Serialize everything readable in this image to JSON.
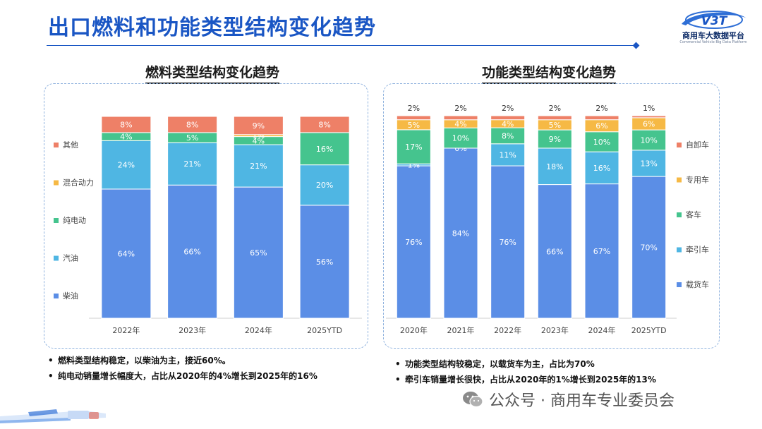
{
  "page": {
    "title": "出口燃料和功能类型结构变化趋势"
  },
  "logo": {
    "mark": "V3T",
    "name": "商用车大数据平台",
    "sub": "Commercial Vehicle Big Data Platform"
  },
  "colors": {
    "title": "#1a56c4",
    "panel_border": "#8fb2de"
  },
  "watermark": "公众号 · 商用车专业委员会",
  "chart_data": [
    {
      "type": "bar",
      "stacked": true,
      "title": "燃料类型结构变化趋势",
      "categories": [
        "2022年",
        "2023年",
        "2024年",
        "2025YTD"
      ],
      "ylim": [
        0,
        100
      ],
      "legend_position": "left",
      "series": [
        {
          "name": "柴油",
          "color": "#5b8ee6",
          "values": [
            64,
            66,
            65,
            56
          ]
        },
        {
          "name": "汽油",
          "color": "#4fb6e3",
          "values": [
            24,
            21,
            21,
            20
          ]
        },
        {
          "name": "纯电动",
          "color": "#45c48e",
          "values": [
            4,
            5,
            4,
            16
          ]
        },
        {
          "name": "混合动力",
          "color": "#f6b945",
          "values": [
            0,
            0,
            1,
            0
          ]
        },
        {
          "name": "其他",
          "color": "#ee8067",
          "values": [
            8,
            8,
            9,
            8
          ]
        }
      ],
      "labels": [
        [
          "64%",
          "66%",
          "65%",
          "56%"
        ],
        [
          "24%",
          "21%",
          "21%",
          "20%"
        ],
        [
          "4%",
          "5%",
          "4%",
          "16%"
        ],
        [
          "",
          "",
          "1%",
          ""
        ],
        [
          "8%",
          "8%",
          "9%",
          "8%"
        ]
      ]
    },
    {
      "type": "bar",
      "stacked": true,
      "title": "功能类型结构变化趋势",
      "categories": [
        "2020年",
        "2021年",
        "2022年",
        "2023年",
        "2024年",
        "2025YTD"
      ],
      "ylim": [
        0,
        100
      ],
      "legend_position": "right",
      "series": [
        {
          "name": "载货车",
          "color": "#5b8ee6",
          "values": [
            76,
            84,
            76,
            66,
            67,
            70
          ]
        },
        {
          "name": "牵引车",
          "color": "#4fb6e3",
          "values": [
            1,
            0,
            11,
            18,
            16,
            13
          ]
        },
        {
          "name": "客车",
          "color": "#45c48e",
          "values": [
            17,
            10,
            8,
            9,
            10,
            10
          ]
        },
        {
          "name": "专用车",
          "color": "#f6b945",
          "values": [
            5,
            4,
            4,
            5,
            6,
            6
          ]
        },
        {
          "name": "自卸车",
          "color": "#ee8067",
          "values": [
            2,
            2,
            2,
            2,
            2,
            1
          ]
        }
      ],
      "labels": [
        [
          "76%",
          "84%",
          "76%",
          "66%",
          "67%",
          "70%"
        ],
        [
          "1%",
          "0%",
          "11%",
          "18%",
          "16%",
          "13%"
        ],
        [
          "17%",
          "10%",
          "8%",
          "9%",
          "10%",
          "10%"
        ],
        [
          "5%",
          "4%",
          "4%",
          "5%",
          "6%",
          "6%"
        ],
        [
          "2%",
          "2%",
          "2%",
          "2%",
          "2%",
          "1%"
        ]
      ]
    }
  ],
  "notes": {
    "left": [
      "燃料类型结构稳定，以柴油为主，接近60%。",
      "纯电动销量增长幅度大，占比从2020年的4%增长到2025年的16%"
    ],
    "right": [
      "功能类型结构较稳定，以载货车为主，占比为70%",
      "牵引车销量增长很快，占比从2020年的1%增长到2025年的13%"
    ]
  }
}
